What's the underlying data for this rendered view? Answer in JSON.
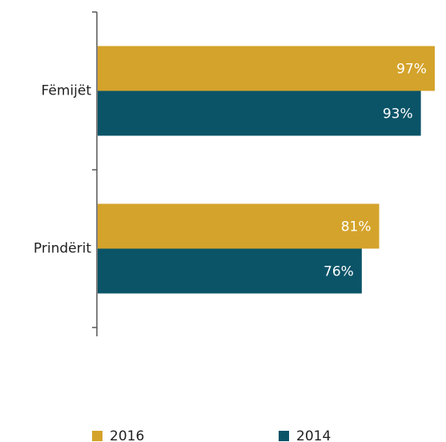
{
  "chart_data": {
    "type": "bar",
    "orientation": "horizontal",
    "categories": [
      "Fëmijët",
      "Prindërit"
    ],
    "series": [
      {
        "name": "2016",
        "color": "#d4a32b",
        "values": [
          97,
          81
        ],
        "value_labels": [
          "97%",
          "81%"
        ]
      },
      {
        "name": "2014",
        "color": "#0b5468",
        "values": [
          93,
          76
        ],
        "value_labels": [
          "93%",
          "76%"
        ]
      }
    ],
    "xlim": [
      0,
      100
    ],
    "legend": "bottom"
  }
}
